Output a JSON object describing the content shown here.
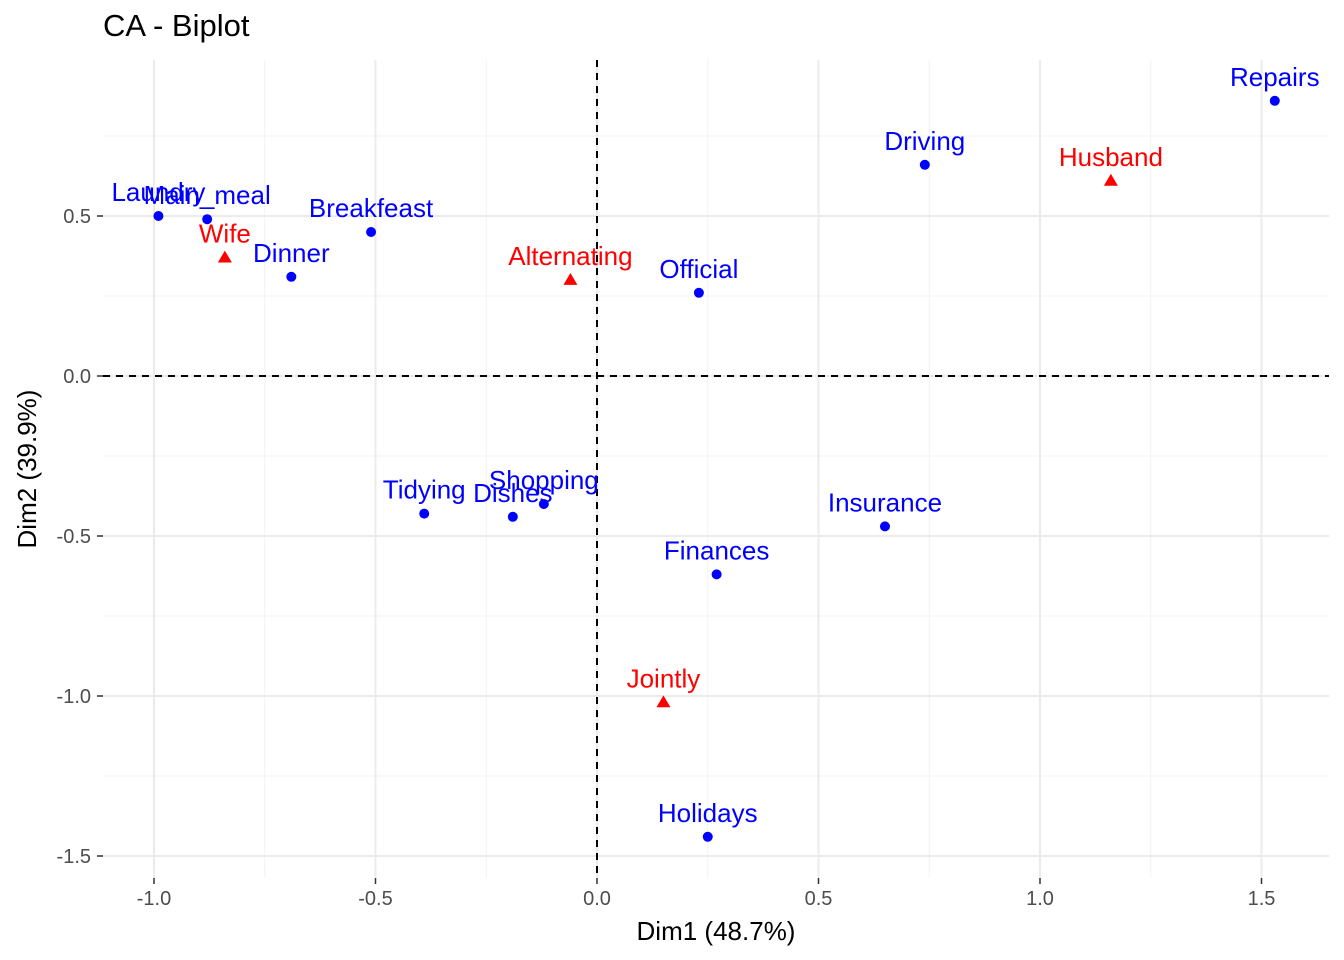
{
  "chart_data": {
    "type": "scatter",
    "title": "CA - Biplot",
    "xlabel": "Dim1 (48.7%)",
    "ylabel": "Dim2 (39.9%)",
    "xlim": [
      -1.13,
      1.66
    ],
    "ylim": [
      -1.56,
      0.98
    ],
    "x_ticks": [
      -1.0,
      -0.5,
      0.0,
      0.5,
      1.0,
      1.5
    ],
    "x_tick_labels": [
      "-1.0",
      "-0.5",
      "0.0",
      "0.5",
      "1.0",
      "1.5"
    ],
    "y_ticks": [
      0.5,
      0.0,
      -0.5,
      -1.0,
      -1.5
    ],
    "y_tick_labels": [
      "0.5",
      "0.0",
      "-0.5",
      "-1.0",
      "-1.5"
    ],
    "grid": true,
    "reference_lines": {
      "x": 0,
      "y": 0,
      "style": "dashed"
    },
    "series": [
      {
        "marker": "circle",
        "color": "#0000FF",
        "points": [
          {
            "label": "Laundry",
            "x": -0.99,
            "y": 0.5
          },
          {
            "label": "Main_meal",
            "x": -0.88,
            "y": 0.49
          },
          {
            "label": "Dinner",
            "x": -0.69,
            "y": 0.31
          },
          {
            "label": "Breakfeast",
            "x": -0.51,
            "y": 0.45
          },
          {
            "label": "Tidying",
            "x": -0.39,
            "y": -0.43
          },
          {
            "label": "Dishes",
            "x": -0.19,
            "y": -0.44
          },
          {
            "label": "Shopping",
            "x": -0.12,
            "y": -0.4
          },
          {
            "label": "Official",
            "x": 0.23,
            "y": 0.26
          },
          {
            "label": "Driving",
            "x": 0.74,
            "y": 0.66
          },
          {
            "label": "Finances",
            "x": 0.27,
            "y": -0.62
          },
          {
            "label": "Insurance",
            "x": 0.65,
            "y": -0.47
          },
          {
            "label": "Repairs",
            "x": 1.53,
            "y": 0.86
          },
          {
            "label": "Holidays",
            "x": 0.25,
            "y": -1.44
          }
        ]
      },
      {
        "marker": "triangle",
        "color": "#FF0000",
        "points": [
          {
            "label": "Wife",
            "x": -0.84,
            "y": 0.37
          },
          {
            "label": "Alternating",
            "x": -0.06,
            "y": 0.3
          },
          {
            "label": "Jointly",
            "x": 0.15,
            "y": -1.02
          },
          {
            "label": "Husband",
            "x": 1.16,
            "y": 0.61
          }
        ]
      }
    ]
  }
}
